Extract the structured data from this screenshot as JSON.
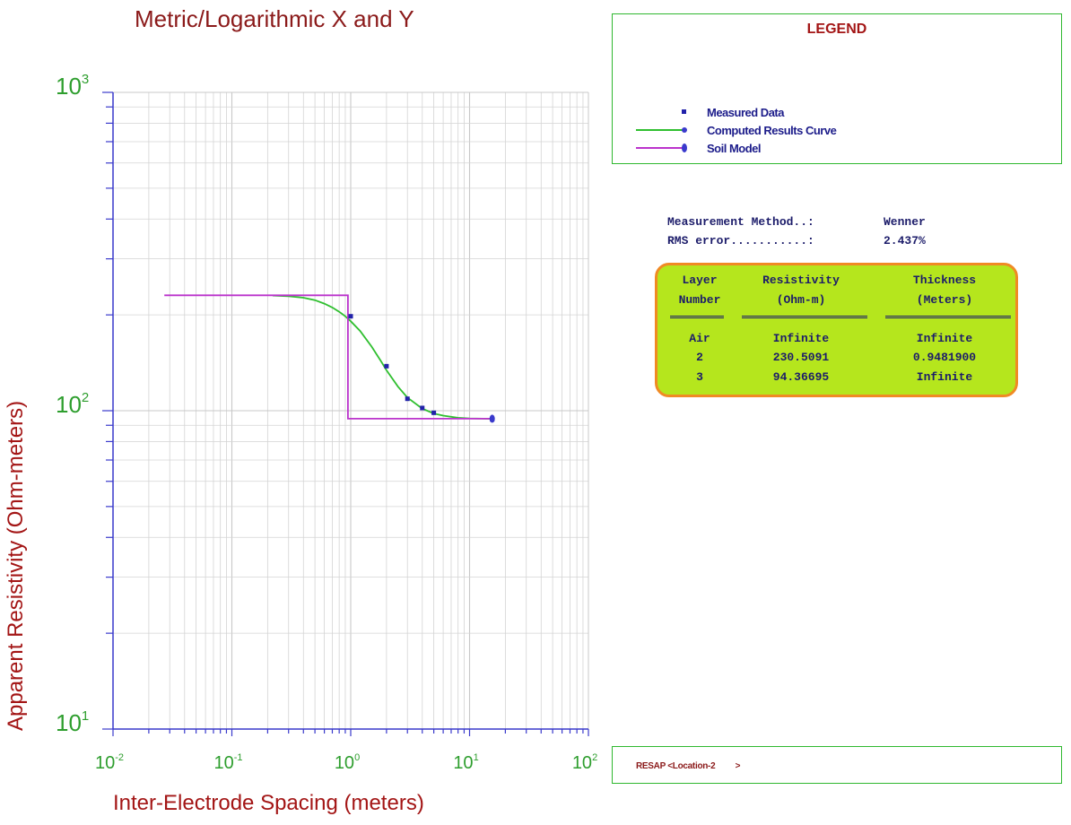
{
  "chart_data": {
    "type": "line",
    "title": "Metric/Logarithmic X and Y",
    "xlabel": "Inter-Electrode Spacing (meters)",
    "ylabel": "Apparent Resistivity (Ohm-meters)",
    "x_scale": "log",
    "y_scale": "log",
    "xlim": [
      0.01,
      100
    ],
    "ylim": [
      10,
      1000
    ],
    "x_ticks": [
      {
        "base": "10",
        "exp": "-2",
        "value": 0.01
      },
      {
        "base": "10",
        "exp": "-1",
        "value": 0.1
      },
      {
        "base": "10",
        "exp": "0",
        "value": 1
      },
      {
        "base": "10",
        "exp": "1",
        "value": 10
      },
      {
        "base": "10",
        "exp": "2",
        "value": 100
      }
    ],
    "y_ticks": [
      {
        "base": "10",
        "exp": "1",
        "value": 10
      },
      {
        "base": "10",
        "exp": "2",
        "value": 100
      },
      {
        "base": "10",
        "exp": "3",
        "value": 1000
      }
    ],
    "grid": true,
    "colors": {
      "axis": "#3a3acc",
      "grid": "#d4d4d4",
      "tick_label": "#2e9e2e",
      "measured": "#2222aa",
      "computed": "#2fbf2f",
      "model": "#bb33cc"
    },
    "series": [
      {
        "name": "Measured Data",
        "kind": "scatter",
        "x": [
          1.0,
          2.0,
          3.0,
          4.0,
          5.0,
          15.5
        ],
        "y": [
          198,
          138,
          109,
          102,
          98.5,
          94
        ]
      },
      {
        "name": "Computed Results Curve",
        "kind": "line",
        "x": [
          0.22,
          0.3,
          0.4,
          0.5,
          0.6,
          0.7,
          0.8,
          0.9,
          1.0,
          1.2,
          1.5,
          1.8,
          2.0,
          2.5,
          3.0,
          4.0,
          5.0,
          6.0,
          8.0,
          10.0,
          13.0,
          15.5
        ],
        "y": [
          230,
          229,
          226.5,
          222.5,
          217,
          211,
          204.5,
          198,
          191,
          178,
          159,
          143,
          134,
          119,
          110,
          101.5,
          98,
          96.5,
          95,
          94.6,
          94.4,
          94.3
        ]
      },
      {
        "name": "Soil Model",
        "kind": "step",
        "x": [
          0.027,
          0.948,
          0.948,
          15.5
        ],
        "y": [
          230.5,
          230.5,
          94.37,
          94.37
        ]
      }
    ]
  },
  "legend": {
    "title": "LEGEND",
    "items": [
      "Measured Data",
      "Computed Results Curve",
      "Soil Model"
    ]
  },
  "info": {
    "method_label": "Measurement Method..:",
    "method_value": "Wenner",
    "rms_label": "RMS error...........:",
    "rms_value": "2.437%"
  },
  "layers_table": {
    "headers": [
      [
        "Layer",
        "Number"
      ],
      [
        "Resistivity",
        "(Ohm-m)"
      ],
      [
        "Thickness",
        "(Meters)"
      ]
    ],
    "rows": [
      [
        "Air",
        "Infinite",
        "Infinite"
      ],
      [
        "2",
        "230.5091",
        "0.9481900"
      ],
      [
        "3",
        "94.36695",
        "Infinite"
      ]
    ]
  },
  "footer": {
    "text": "RESAP <Location-2         >"
  }
}
